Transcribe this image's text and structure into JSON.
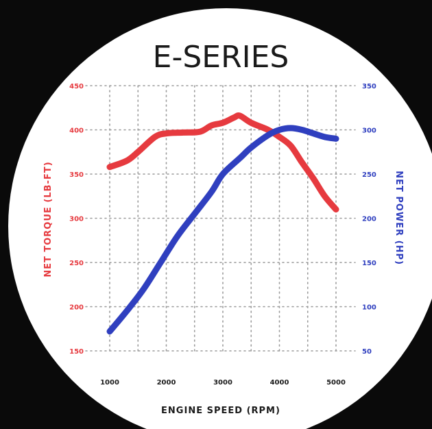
{
  "chart_data": {
    "type": "line",
    "title": "E-SERIES",
    "xlabel": "ENGINE SPEED (RPM)",
    "ylabel_left": "NET TORQUE (LB-FT)",
    "ylabel_right": "NET POWER (HP)",
    "x_ticks": [
      "1000",
      "2000",
      "3000",
      "4000",
      "5000"
    ],
    "y_left_ticks": [
      "450",
      "400",
      "350",
      "300",
      "250",
      "200",
      "150"
    ],
    "y_right_ticks": [
      "350",
      "300",
      "250",
      "200",
      "150",
      "100",
      "50"
    ],
    "xlim": [
      1000,
      5000
    ],
    "y_left_lim": [
      150,
      450
    ],
    "y_right_lim": [
      50,
      350
    ],
    "grid": true,
    "colors": {
      "torque": "#e63a3f",
      "power": "#2f3fbf",
      "background": "#ffffff",
      "text": "#1a1a1a"
    },
    "series": [
      {
        "key": "torque",
        "axis": "left",
        "x": [
          1000,
          1300,
          1500,
          1800,
          2000,
          2300,
          2600,
          2800,
          3000,
          3200,
          3300,
          3500,
          3800,
          4000,
          4200,
          4400,
          4600,
          4800,
          5000
        ],
        "y": [
          358,
          365,
          375,
          392,
          396,
          397,
          398,
          405,
          408,
          414,
          416,
          408,
          400,
          392,
          382,
          363,
          345,
          325,
          310
        ]
      },
      {
        "key": "power",
        "axis": "right",
        "x": [
          1000,
          1300,
          1600,
          1900,
          2200,
          2500,
          2800,
          3000,
          3300,
          3500,
          3800,
          4000,
          4200,
          4400,
          4600,
          4800,
          5000
        ],
        "y": [
          72,
          95,
          120,
          150,
          180,
          205,
          230,
          250,
          268,
          280,
          294,
          300,
          302,
          300,
          296,
          292,
          290
        ]
      }
    ]
  }
}
